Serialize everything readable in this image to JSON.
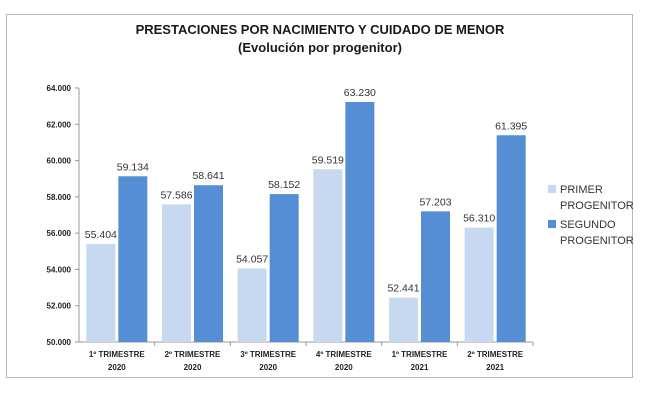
{
  "chart_data": {
    "type": "bar",
    "title": "PRESTACIONES POR NACIMIENTO Y CUIDADO DE MENOR",
    "subtitle": "(Evolución por progenitor)",
    "categories": [
      [
        "1º TRIMESTRE",
        "2020"
      ],
      [
        "2º TRIMESTRE",
        "2020"
      ],
      [
        "3º TRIMESTRE",
        "2020"
      ],
      [
        "4º TRIMESTRE",
        "2020"
      ],
      [
        "1º TRIMESTRE",
        "2021"
      ],
      [
        "2º TRIMESTRE",
        "2021"
      ]
    ],
    "series": [
      {
        "name": [
          "PRIMER",
          "PROGENITOR"
        ],
        "color": "#c6d9f1",
        "values": [
          55404,
          57586,
          54057,
          59519,
          52441,
          56310
        ],
        "labels": [
          "55.404",
          "57.586",
          "54.057",
          "59.519",
          "52.441",
          "56.310"
        ]
      },
      {
        "name": [
          "SEGUNDO",
          "PROGENITOR"
        ],
        "color": "#558ed5",
        "values": [
          59134,
          58641,
          58152,
          63230,
          57203,
          61395
        ],
        "labels": [
          "59.134",
          "58.641",
          "58.152",
          "63.230",
          "57.203",
          "61.395"
        ]
      }
    ],
    "ylim": [
      50000,
      64000
    ],
    "yticks": [
      50000,
      52000,
      54000,
      56000,
      58000,
      60000,
      62000,
      64000
    ],
    "ytick_labels": [
      "50.000",
      "52.000",
      "54.000",
      "56.000",
      "58.000",
      "60.000",
      "62.000",
      "64.000"
    ],
    "grid": false,
    "legend": "right"
  }
}
